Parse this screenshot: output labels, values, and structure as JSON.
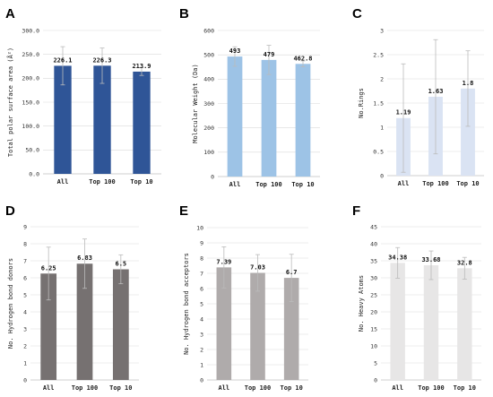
{
  "chart_data": [
    {
      "type": "bar",
      "panel": "A",
      "categories": [
        "All",
        "Top 100",
        "Top 10"
      ],
      "values": [
        226.1,
        226.3,
        213.9
      ],
      "value_labels": [
        "226.1",
        "226.3",
        "213.9"
      ],
      "errors": [
        40,
        37,
        8
      ],
      "ylabel": "Total polar surface area (Å²)",
      "ylim": [
        0,
        300
      ],
      "yticks": [
        "0.0",
        "50.0",
        "100.0",
        "150.0",
        "200.0",
        "250.0",
        "300.0"
      ],
      "color": "#2f5597"
    },
    {
      "type": "bar",
      "panel": "B",
      "categories": [
        "All",
        "Top 100",
        "Top 10"
      ],
      "values": [
        493,
        479,
        462.8
      ],
      "value_labels": [
        "493",
        "479",
        "462.8"
      ],
      "errors": [
        40,
        60,
        12
      ],
      "ylabel": "Molecular Weight (Da)",
      "ylim": [
        0,
        600
      ],
      "yticks": [
        "0",
        "100",
        "200",
        "300",
        "400",
        "500",
        "600"
      ],
      "color": "#9dc3e6"
    },
    {
      "type": "bar",
      "panel": "C",
      "categories": [
        "All",
        "Top 100",
        "Top 10"
      ],
      "values": [
        1.19,
        1.63,
        1.8
      ],
      "value_labels": [
        "1.19",
        "1.63",
        "1.8"
      ],
      "errors": [
        1.12,
        1.18,
        0.78
      ],
      "ylabel": "No.Rings",
      "ylim": [
        0,
        3
      ],
      "yticks": [
        "0",
        "0.5",
        "1",
        "1.5",
        "2",
        "2.5",
        "3"
      ],
      "color": "#dae3f3"
    },
    {
      "type": "bar",
      "panel": "D",
      "categories": [
        "All",
        "Top 100",
        "Top 10"
      ],
      "values": [
        6.25,
        6.83,
        6.5
      ],
      "value_labels": [
        "6.25",
        "6.83",
        "6.5"
      ],
      "errors": [
        1.55,
        1.45,
        0.85
      ],
      "ylabel": "No. Hydrogen bond donors",
      "ylim": [
        0,
        9
      ],
      "yticks": [
        "0",
        "1",
        "2",
        "3",
        "4",
        "5",
        "6",
        "7",
        "8",
        "9"
      ],
      "color": "#767171"
    },
    {
      "type": "bar",
      "panel": "E",
      "categories": [
        "All",
        "Top 100",
        "Top 10"
      ],
      "values": [
        7.39,
        7.03,
        6.7
      ],
      "value_labels": [
        "7.39",
        "7.03",
        "6.7"
      ],
      "errors": [
        1.35,
        1.2,
        1.55
      ],
      "ylabel": "No. Hydrogen bond acceptors",
      "ylim": [
        0,
        10
      ],
      "yticks": [
        "0",
        "1",
        "2",
        "3",
        "4",
        "5",
        "6",
        "7",
        "8",
        "9",
        "10"
      ],
      "color": "#afabab"
    },
    {
      "type": "bar",
      "panel": "F",
      "categories": [
        "All",
        "Top 100",
        "Top 10"
      ],
      "values": [
        34.38,
        33.68,
        32.8
      ],
      "value_labels": [
        "34.38",
        "33.68",
        "32.8"
      ],
      "errors": [
        4.5,
        4.2,
        3.2
      ],
      "ylabel": "No. Heavy Atoms",
      "ylim": [
        0,
        45
      ],
      "yticks": [
        "0",
        "5",
        "10",
        "15",
        "20",
        "25",
        "30",
        "35",
        "40",
        "45"
      ],
      "color": "#e7e6e6"
    }
  ]
}
